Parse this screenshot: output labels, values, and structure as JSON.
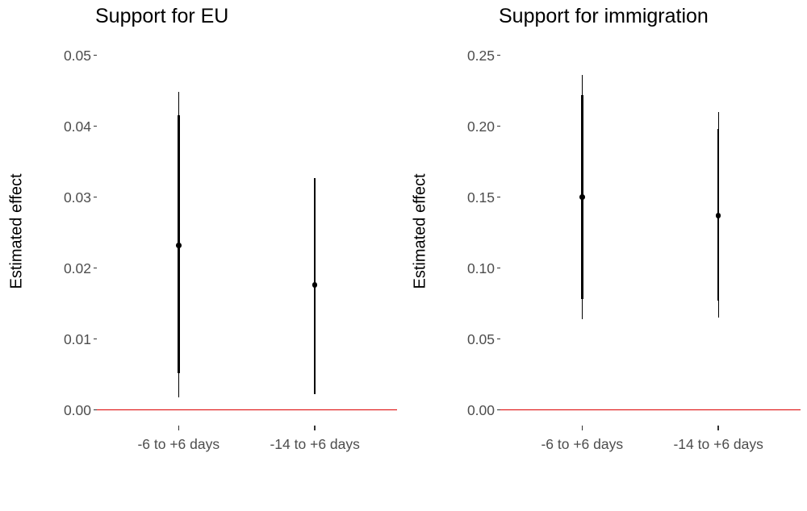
{
  "colors": {
    "zero_line": "#dd0000",
    "axis_text": "#4d4d4d",
    "tick_mark": "#333333",
    "data_black": "#000000",
    "background": "#ffffff"
  },
  "chart_data": [
    {
      "type": "pointrange",
      "title": "Support for EU",
      "ylabel": "Estimated effect",
      "categories": [
        "-6 to +6 days",
        "-14 to +6 days"
      ],
      "ytick_labels": [
        "0.00",
        "0.01",
        "0.02",
        "0.03",
        "0.04",
        "0.05"
      ],
      "ylim": [
        0,
        0.05
      ],
      "hline": 0,
      "grid": false,
      "legend": "none",
      "points": [
        {
          "category": "-6 to +6 days",
          "estimate": 0.0232,
          "inner_ci": [
            0.0052,
            0.0415
          ],
          "outer_ci": [
            0.0018,
            0.0448
          ]
        },
        {
          "category": "-14 to +6 days",
          "estimate": 0.0176,
          "inner_ci": [
            0.0022,
            0.0327
          ],
          "outer_ci": [
            0.0022,
            0.0327
          ]
        }
      ]
    },
    {
      "type": "pointrange",
      "title": "Support for immigration",
      "ylabel": "Estimated effect",
      "categories": [
        "-6 to +6 days",
        "-14 to +6 days"
      ],
      "ytick_labels": [
        "0.00",
        "0.05",
        "0.10",
        "0.15",
        "0.20",
        "0.25"
      ],
      "ylim": [
        0,
        0.25
      ],
      "hline": 0,
      "grid": false,
      "legend": "none",
      "points": [
        {
          "category": "-6 to +6 days",
          "estimate": 0.15,
          "inner_ci": [
            0.078,
            0.222
          ],
          "outer_ci": [
            0.064,
            0.236
          ]
        },
        {
          "category": "-14 to +6 days",
          "estimate": 0.137,
          "inner_ci": [
            0.077,
            0.198
          ],
          "outer_ci": [
            0.065,
            0.21
          ]
        }
      ]
    }
  ]
}
